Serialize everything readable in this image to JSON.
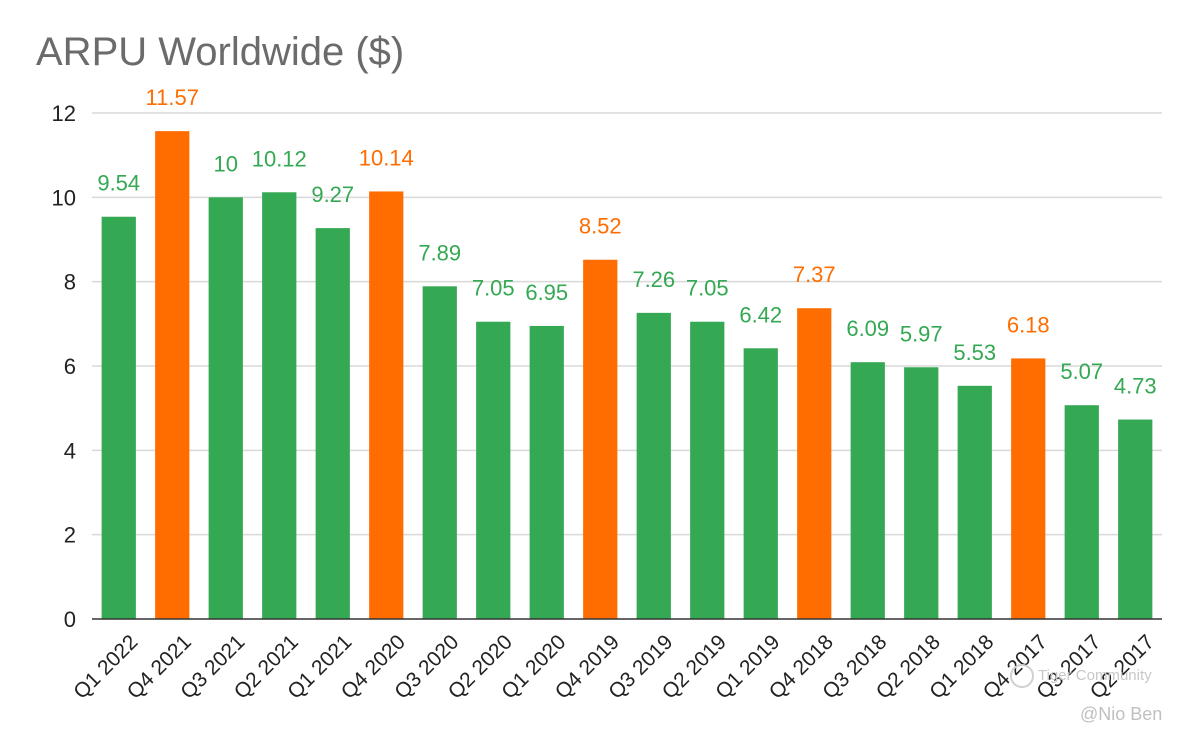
{
  "chart_data": {
    "type": "bar",
    "title": "ARPU Worldwide ($)",
    "xlabel": "",
    "ylabel": "",
    "ylim": [
      0,
      12
    ],
    "yticks": [
      "0",
      "2",
      "4",
      "6",
      "8",
      "10",
      "12"
    ],
    "grid": true,
    "categories": [
      "Q1 2022",
      "Q4 2021",
      "Q3 2021",
      "Q2 2021",
      "Q1 2021",
      "Q4 2020",
      "Q3 2020",
      "Q2 2020",
      "Q1 2020",
      "Q4 2019",
      "Q3 2019",
      "Q2 2019",
      "Q1 2019",
      "Q4 2018",
      "Q3 2018",
      "Q2 2018",
      "Q1 2018",
      "Q4 2017",
      "Q3 2017",
      "Q2 2017"
    ],
    "values": [
      9.54,
      11.57,
      10,
      10.12,
      9.27,
      10.14,
      7.89,
      7.05,
      6.95,
      8.52,
      7.26,
      7.05,
      6.42,
      7.37,
      6.09,
      5.97,
      5.53,
      6.18,
      5.07,
      4.73
    ],
    "data_labels": [
      "9.54",
      "11.57",
      "10",
      "10.12",
      "9.27",
      "10.14",
      "7.89",
      "7.05",
      "6.95",
      "8.52",
      "7.26",
      "7.05",
      "6.42",
      "7.37",
      "6.09",
      "5.97",
      "5.53",
      "6.18",
      "5.07",
      "4.73"
    ],
    "highlight_quarter": "Q4",
    "colors": {
      "default": "#34a853",
      "highlight": "#ff6d01",
      "grid": "#d9d9d9",
      "axis": "#333333"
    }
  },
  "watermark": {
    "line1": "Tiger Community",
    "line2": "@Nio Ben"
  }
}
